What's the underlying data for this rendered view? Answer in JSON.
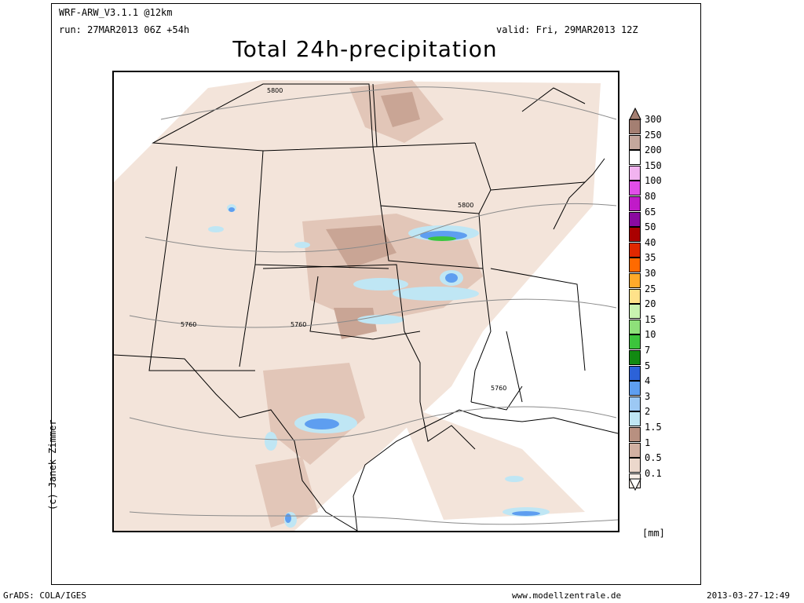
{
  "header": {
    "model": "WRF-ARW_V3.1.1 @12km",
    "run": "run: 27MAR2013 06Z +54h",
    "valid": "valid: Fri, 29MAR2013 12Z",
    "title": "Total 24h-precipitation"
  },
  "map": {
    "contour_labels": [
      {
        "text": "5800"
      },
      {
        "text": "5800"
      },
      {
        "text": "5760"
      },
      {
        "text": "5760"
      },
      {
        "text": "5760"
      }
    ]
  },
  "credit": "(c) Janek Zimmer",
  "legend": {
    "unit": "[mm]",
    "levels": [
      {
        "label": "300",
        "color": "#a47f72"
      },
      {
        "label": "250",
        "color": "#c4a79c"
      },
      {
        "label": "200",
        "color": "#ffffff"
      },
      {
        "label": "150",
        "color": "#f2b3f0"
      },
      {
        "label": "100",
        "color": "#e14ee8"
      },
      {
        "label": "80",
        "color": "#c01ac8"
      },
      {
        "label": "65",
        "color": "#8a0aa0"
      },
      {
        "label": "50",
        "color": "#aa0000"
      },
      {
        "label": "40",
        "color": "#e02800"
      },
      {
        "label": "35",
        "color": "#ff6a00"
      },
      {
        "label": "30",
        "color": "#ffaa2a"
      },
      {
        "label": "25",
        "color": "#ffe28a"
      },
      {
        "label": "20",
        "color": "#c8f2b0"
      },
      {
        "label": "15",
        "color": "#8ee07a"
      },
      {
        "label": "10",
        "color": "#3cc43c"
      },
      {
        "label": "7",
        "color": "#128a12"
      },
      {
        "label": "5",
        "color": "#2c62d8"
      },
      {
        "label": "4",
        "color": "#5e9ef0"
      },
      {
        "label": "3",
        "color": "#9cc8f4"
      },
      {
        "label": "2",
        "color": "#bfe6f4"
      },
      {
        "label": "1.5",
        "color": "#b89080"
      },
      {
        "label": "1",
        "color": "#d2b0a2"
      },
      {
        "label": "0.5",
        "color": "#ecd8cc"
      },
      {
        "label": "0.1",
        "color": "#f9efe8"
      }
    ]
  },
  "footer": {
    "left": "GrADS: COLA/IGES",
    "center": "www.modellzentrale.de",
    "right": "2013-03-27-12:49"
  }
}
